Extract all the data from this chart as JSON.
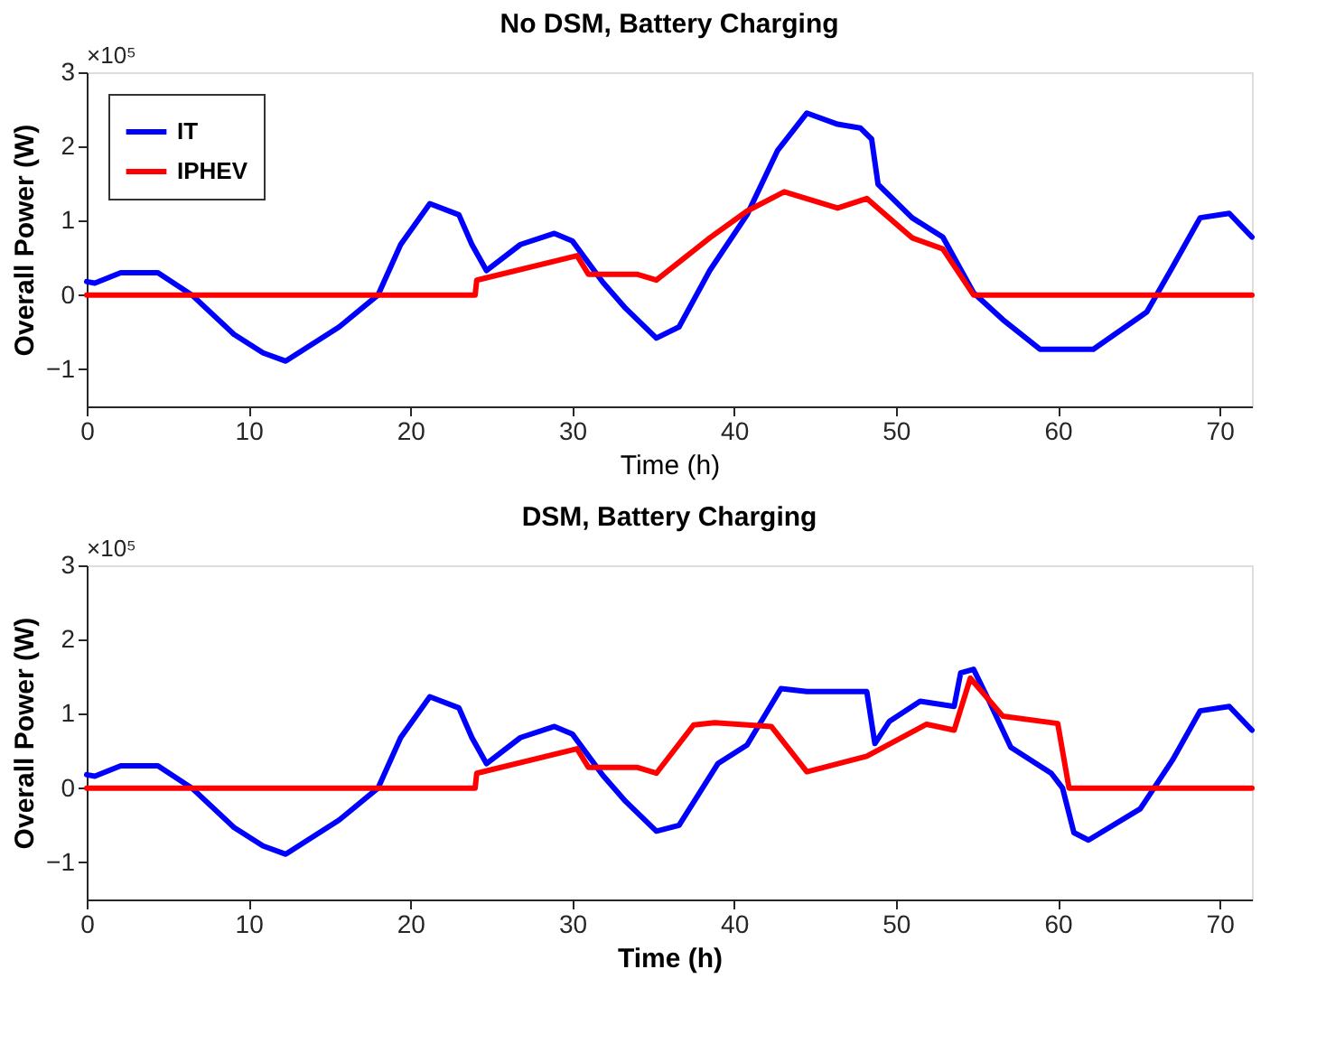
{
  "chart_data": [
    {
      "type": "line",
      "title": "No DSM, Battery Charging",
      "xlabel": "Time (h)",
      "ylabel": "Overall Power (W)",
      "annotations": [
        "×10⁵"
      ],
      "xlim": [
        0,
        72
      ],
      "ylim": [
        -1.5,
        3
      ],
      "xticks": [
        0,
        10,
        20,
        30,
        40,
        50,
        60,
        70
      ],
      "yticks": [
        -1,
        0,
        1,
        2,
        3
      ],
      "grid": false,
      "legend": "top left",
      "line_style": "solid",
      "series": [
        {
          "name": "IT",
          "color": "#0000ff",
          "x": [
            0,
            0.5,
            2.1,
            4.4,
            6.5,
            9.1,
            10.9,
            12.3,
            15.6,
            18,
            19.4,
            21.2,
            23,
            23.8,
            24.7,
            26.8,
            28.9,
            30,
            31.9,
            33.3,
            35.2,
            36.6,
            38.5,
            40.8,
            42.7,
            44.5,
            46.4,
            47.8,
            48.5,
            48.9,
            51,
            52.9,
            54.8,
            56.6,
            58.9,
            62.2,
            65.5,
            67.1,
            68.8,
            70.6,
            72
          ],
          "values": [
            0.18,
            0.16,
            0.3,
            0.3,
            0,
            -0.53,
            -0.78,
            -0.89,
            -0.43,
            0,
            0.68,
            1.23,
            1.08,
            0.68,
            0.33,
            0.68,
            0.83,
            0.73,
            0.17,
            -0.18,
            -0.58,
            -0.43,
            0.33,
            1.08,
            1.95,
            2.45,
            2.3,
            2.25,
            2.1,
            1.49,
            1.04,
            0.78,
            0.03,
            -0.33,
            -0.73,
            -0.73,
            -0.23,
            0.38,
            1.04,
            1.1,
            0.78
          ]
        },
        {
          "name": "IPHEV",
          "color": "#ff0000",
          "x": [
            0,
            24,
            24.1,
            30.3,
            31,
            34,
            35.2,
            38.5,
            40.8,
            43.1,
            46.4,
            48.2,
            51,
            52.9,
            54.8,
            72
          ],
          "values": [
            0,
            0,
            0.2,
            0.53,
            0.28,
            0.28,
            0.2,
            0.77,
            1.13,
            1.39,
            1.17,
            1.3,
            0.77,
            0.62,
            0,
            0
          ]
        }
      ]
    },
    {
      "type": "line",
      "title": "DSM, Battery Charging",
      "xlabel": "Time (h)",
      "ylabel": "Overall Power (W)",
      "annotations": [
        "×10⁵"
      ],
      "xlim": [
        0,
        72
      ],
      "ylim": [
        -1.5,
        3
      ],
      "xticks": [
        0,
        10,
        20,
        30,
        40,
        50,
        60,
        70
      ],
      "yticks": [
        -1,
        0,
        1,
        2,
        3
      ],
      "grid": false,
      "legend": "top left",
      "line_style": "solid",
      "series": [
        {
          "name": "IT",
          "color": "#0000ff",
          "x": [
            0,
            0.5,
            2.1,
            4.4,
            6.5,
            9.1,
            10.9,
            12.3,
            15.6,
            18,
            19.4,
            21.2,
            23,
            23.8,
            24.7,
            26.8,
            28.9,
            30,
            31.9,
            33.3,
            35.2,
            36.6,
            39,
            40.8,
            42.9,
            44.5,
            48.2,
            48.7,
            49.6,
            51.5,
            53.6,
            54,
            54.8,
            55.7,
            57.1,
            59.6,
            60.3,
            61,
            61.9,
            65.1,
            67.1,
            68.8,
            70.6,
            72
          ],
          "values": [
            0.18,
            0.16,
            0.3,
            0.3,
            0,
            -0.53,
            -0.78,
            -0.89,
            -0.43,
            0,
            0.68,
            1.23,
            1.08,
            0.68,
            0.33,
            0.68,
            0.83,
            0.73,
            0.17,
            -0.18,
            -0.58,
            -0.5,
            0.33,
            0.58,
            1.34,
            1.3,
            1.3,
            0.6,
            0.9,
            1.17,
            1.1,
            1.55,
            1.6,
            1.2,
            0.55,
            0.2,
            0,
            -0.6,
            -0.7,
            -0.28,
            0.38,
            1.04,
            1.1,
            0.78
          ]
        },
        {
          "name": "IPHEV",
          "color": "#ff0000",
          "x": [
            0,
            24,
            24.1,
            30.3,
            31,
            34,
            35.2,
            37.5,
            38.8,
            42.3,
            44.5,
            48.2,
            51.9,
            53.6,
            54.6,
            56.6,
            60,
            60.7,
            72
          ],
          "values": [
            0,
            0,
            0.2,
            0.53,
            0.28,
            0.28,
            0.2,
            0.85,
            0.88,
            0.83,
            0.22,
            0.43,
            0.86,
            0.78,
            1.48,
            0.97,
            0.87,
            0,
            0
          ]
        }
      ]
    }
  ]
}
